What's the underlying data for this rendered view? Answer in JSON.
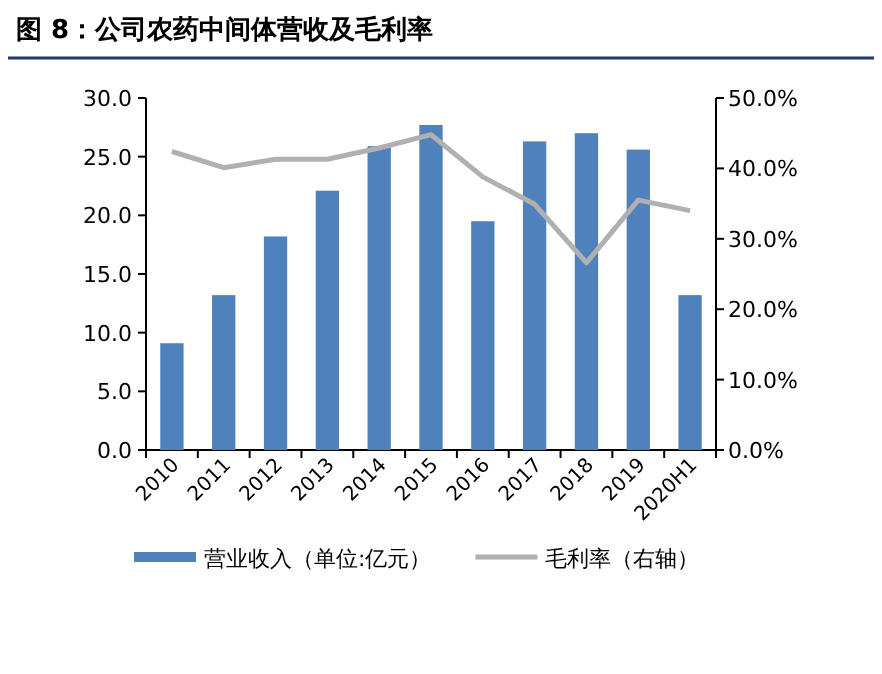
{
  "chart_data": {
    "type": "bar",
    "title": "图 8：公司农药中间体营收及毛利率",
    "categories": [
      "2010",
      "2011",
      "2012",
      "2013",
      "2014",
      "2015",
      "2016",
      "2017",
      "2018",
      "2019",
      "2020H1"
    ],
    "series": [
      {
        "name": "营业收入（单位:亿元）",
        "color": "#4f81bd",
        "values": [
          9.1,
          13.2,
          18.2,
          22.1,
          25.9,
          27.7,
          19.5,
          26.3,
          27.0,
          25.6,
          13.2
        ]
      },
      {
        "name": "毛利率（右轴）",
        "type": "line",
        "axis": "y2",
        "color": "#b0b0b0",
        "values": [
          42.4,
          40.1,
          41.3,
          41.3,
          42.9,
          44.8,
          38.8,
          34.9,
          26.6,
          35.5,
          34.0
        ]
      }
    ],
    "ylim": [
      0,
      30
    ],
    "yticks": [
      {
        "value": 0,
        "label": "0.0"
      },
      {
        "value": 5,
        "label": "5.0"
      },
      {
        "value": 10,
        "label": "10.0"
      },
      {
        "value": 15,
        "label": "15.0"
      },
      {
        "value": 20,
        "label": "20.0"
      },
      {
        "value": 25,
        "label": "25.0"
      },
      {
        "value": 30,
        "label": "30.0"
      }
    ],
    "y2lim": [
      0,
      50
    ],
    "y2ticks": [
      {
        "value": 0,
        "label": "0.0%"
      },
      {
        "value": 10,
        "label": "10.0%"
      },
      {
        "value": 20,
        "label": "20.0%"
      },
      {
        "value": 30,
        "label": "30.0%"
      },
      {
        "value": 40,
        "label": "40.0%"
      },
      {
        "value": 50,
        "label": "50.0%"
      }
    ],
    "legend": "bottom",
    "grid": false
  }
}
